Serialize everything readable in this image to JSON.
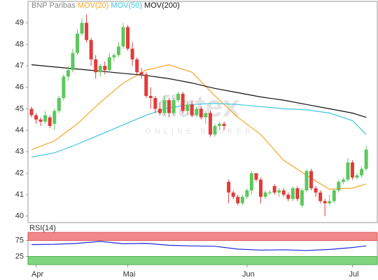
{
  "chart_data": [
    {
      "type": "candlestick",
      "watermark": [
        "flatex",
        "ONLINE BROKER"
      ],
      "categories": [
        null,
        "Apr",
        null,
        null,
        null,
        null,
        null,
        null,
        null,
        null,
        null,
        null,
        null,
        null,
        null,
        null,
        null,
        null,
        null,
        null,
        null,
        "Mai",
        null,
        null,
        null,
        null,
        null,
        null,
        null,
        null,
        null,
        null,
        null,
        null,
        null,
        null,
        null,
        null,
        null,
        null,
        null,
        null,
        null,
        null,
        null,
        null,
        null,
        "Jun",
        null,
        null,
        null,
        null,
        null,
        null,
        null,
        null,
        null,
        null,
        null,
        null,
        null,
        null,
        null,
        null,
        null,
        null,
        null,
        null,
        null,
        null,
        "Jul",
        null,
        null,
        null
      ],
      "series": [
        {
          "name": "BNP Paribas",
          "up_color": "#5cc85c",
          "down_color": "#e23a3a",
          "open": [
            45.0,
            44.7,
            44.5,
            44.4,
            44.6,
            44.3,
            44.9,
            45.5,
            46.5,
            46.8,
            47.6,
            48.5,
            49.0,
            48.2,
            47.3,
            46.7,
            47.0,
            46.8,
            47.4,
            47.5,
            47.9,
            48.8,
            47.8,
            47.3,
            46.7,
            46.6,
            45.6,
            45.5,
            45.0,
            44.8,
            45.4,
            44.8,
            45.4,
            45.7,
            44.9,
            45.2,
            44.7,
            45.0,
            44.6,
            44.8,
            43.8,
            44.2,
            44.3,
            41.6,
            41.1,
            40.9,
            40.6,
            40.9,
            41.2,
            42.0,
            41.7,
            40.9,
            41.1,
            41.4,
            41.1,
            41.2,
            41.0,
            40.8,
            41.3,
            40.5,
            41.2,
            42.1,
            41.3,
            41.1,
            40.7,
            40.6,
            40.7,
            41.2,
            41.6,
            41.7,
            42.5,
            41.8,
            41.9,
            42.2
          ],
          "high": [
            45.1,
            44.8,
            44.6,
            44.9,
            44.7,
            45.0,
            45.6,
            46.6,
            47.0,
            47.8,
            48.7,
            49.2,
            49.4,
            48.3,
            47.5,
            47.1,
            47.2,
            47.6,
            47.6,
            48.1,
            49.0,
            48.9,
            48.1,
            47.4,
            46.9,
            46.7,
            46.0,
            45.6,
            45.3,
            45.6,
            45.5,
            45.5,
            45.8,
            45.8,
            45.3,
            45.4,
            45.1,
            45.1,
            44.9,
            44.9,
            44.3,
            44.4,
            44.4,
            41.7,
            41.2,
            41.0,
            41.0,
            41.3,
            42.1,
            42.0,
            41.8,
            41.2,
            41.2,
            41.5,
            41.3,
            41.3,
            41.1,
            41.4,
            41.4,
            41.3,
            42.2,
            42.2,
            41.4,
            41.2,
            40.8,
            41.0,
            41.3,
            41.7,
            41.8,
            42.7,
            42.6,
            42.0,
            42.3,
            43.3
          ],
          "low": [
            44.6,
            44.3,
            44.2,
            44.3,
            44.1,
            44.0,
            44.8,
            45.4,
            46.3,
            46.7,
            47.5,
            48.4,
            48.1,
            47.0,
            46.4,
            46.5,
            46.6,
            46.7,
            47.2,
            47.4,
            47.8,
            47.7,
            47.0,
            46.6,
            46.4,
            45.5,
            45.0,
            44.8,
            44.7,
            44.7,
            44.6,
            44.7,
            45.3,
            44.8,
            44.7,
            44.6,
            44.6,
            44.5,
            44.3,
            43.7,
            43.7,
            44.0,
            44.0,
            40.6,
            40.8,
            40.5,
            40.5,
            40.8,
            41.0,
            41.6,
            40.6,
            40.8,
            41.0,
            41.0,
            40.9,
            40.9,
            40.7,
            40.7,
            40.7,
            40.4,
            41.1,
            41.2,
            40.9,
            40.6,
            40.0,
            40.5,
            40.6,
            41.1,
            41.5,
            41.6,
            41.7,
            41.7,
            41.8,
            42.1
          ],
          "close": [
            44.7,
            44.5,
            44.4,
            44.7,
            44.2,
            44.9,
            45.5,
            46.5,
            46.8,
            47.6,
            48.5,
            49.0,
            48.2,
            47.3,
            46.7,
            47.0,
            46.8,
            47.4,
            47.5,
            47.9,
            48.8,
            47.8,
            47.3,
            46.7,
            46.6,
            45.6,
            45.5,
            45.0,
            44.8,
            45.4,
            44.8,
            45.4,
            45.7,
            44.9,
            45.2,
            44.7,
            45.0,
            44.6,
            44.8,
            43.8,
            44.2,
            44.3,
            44.2,
            41.1,
            40.9,
            40.6,
            40.9,
            41.2,
            42.0,
            41.7,
            40.9,
            41.1,
            41.1,
            41.1,
            41.2,
            41.0,
            40.8,
            41.3,
            40.8,
            41.2,
            42.1,
            41.3,
            41.1,
            40.7,
            40.6,
            40.7,
            41.2,
            41.6,
            41.7,
            42.5,
            41.8,
            41.9,
            42.2,
            43.1
          ]
        }
      ],
      "lines": [
        {
          "name": "MOV(20)",
          "color": "#f5a623",
          "x": [
            0,
            5,
            10,
            15,
            20,
            25,
            30,
            35,
            40,
            45,
            50,
            55,
            60,
            65,
            70,
            73
          ],
          "values": [
            43.1,
            43.5,
            44.3,
            45.3,
            46.2,
            46.8,
            47.05,
            46.7,
            45.6,
            44.6,
            43.8,
            42.6,
            41.9,
            41.25,
            41.3,
            41.5
          ]
        },
        {
          "name": "MOV(50)",
          "color": "#3ec6e0",
          "x": [
            0,
            5,
            10,
            15,
            20,
            25,
            30,
            35,
            40,
            45,
            50,
            55,
            60,
            65,
            70,
            73
          ],
          "values": [
            42.75,
            42.95,
            43.35,
            43.8,
            44.25,
            44.7,
            45.05,
            45.2,
            45.25,
            45.2,
            45.1,
            45.0,
            44.95,
            44.8,
            44.45,
            43.8
          ]
        },
        {
          "name": "MOV(200)",
          "color": "#111111",
          "x": [
            0,
            5,
            10,
            15,
            20,
            25,
            30,
            35,
            40,
            45,
            50,
            55,
            60,
            65,
            70,
            73
          ],
          "values": [
            47.05,
            46.95,
            46.85,
            46.75,
            46.65,
            46.55,
            46.4,
            46.2,
            45.95,
            45.75,
            45.55,
            45.4,
            45.2,
            45.0,
            44.8,
            44.6
          ]
        }
      ],
      "ylim": [
        39.7,
        50.0
      ],
      "yticks": [
        40,
        41,
        42,
        43,
        44,
        45,
        46,
        47,
        48,
        49
      ]
    },
    {
      "type": "line",
      "title": "RSI(14)",
      "series": [
        {
          "color": "#1c2bd8",
          "x": [
            0,
            5,
            10,
            15,
            20,
            25,
            30,
            35,
            40,
            45,
            50,
            55,
            60,
            65,
            70,
            73
          ],
          "values": [
            62,
            63,
            66,
            72,
            65,
            66,
            60,
            58,
            57,
            48,
            45,
            46,
            44,
            47,
            53,
            58
          ]
        }
      ],
      "ylim": [
        0,
        100
      ],
      "yticks": [
        25,
        75
      ],
      "low_color": "#7fd67f",
      "high_color": "#f08a8a"
    }
  ]
}
